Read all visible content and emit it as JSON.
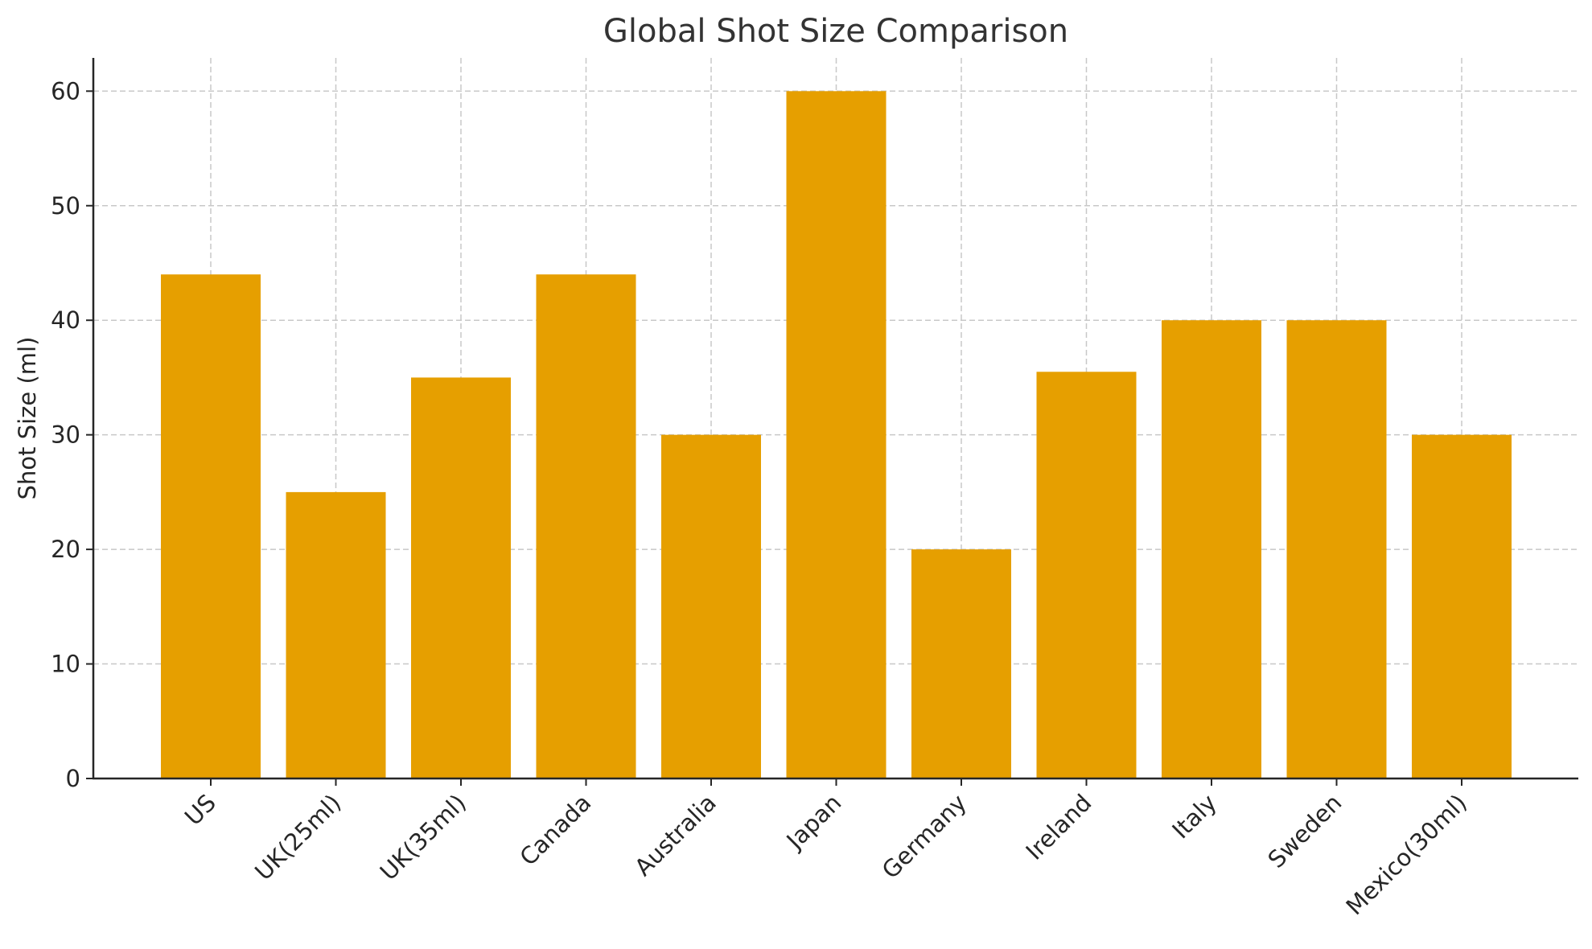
{
  "chart_data": {
    "type": "bar",
    "title": "Global Shot Size Comparison",
    "xlabel": "",
    "ylabel": "Shot Size (ml)",
    "categories": [
      "US",
      "UK(25ml)",
      "UK(35ml)",
      "Canada",
      "Australia",
      "Japan",
      "Germany",
      "Ireland",
      "Italy",
      "Sweden",
      "Mexico(30ml)"
    ],
    "values": [
      44,
      25,
      35,
      44,
      30,
      60,
      20,
      35.5,
      40,
      40,
      30
    ],
    "ylim": [
      0,
      62.9
    ],
    "yticks": [
      0,
      10,
      20,
      30,
      40,
      50,
      60
    ],
    "grid": true,
    "bar_color": "#E69F00",
    "xtick_rotation": -45,
    "legend": null
  }
}
